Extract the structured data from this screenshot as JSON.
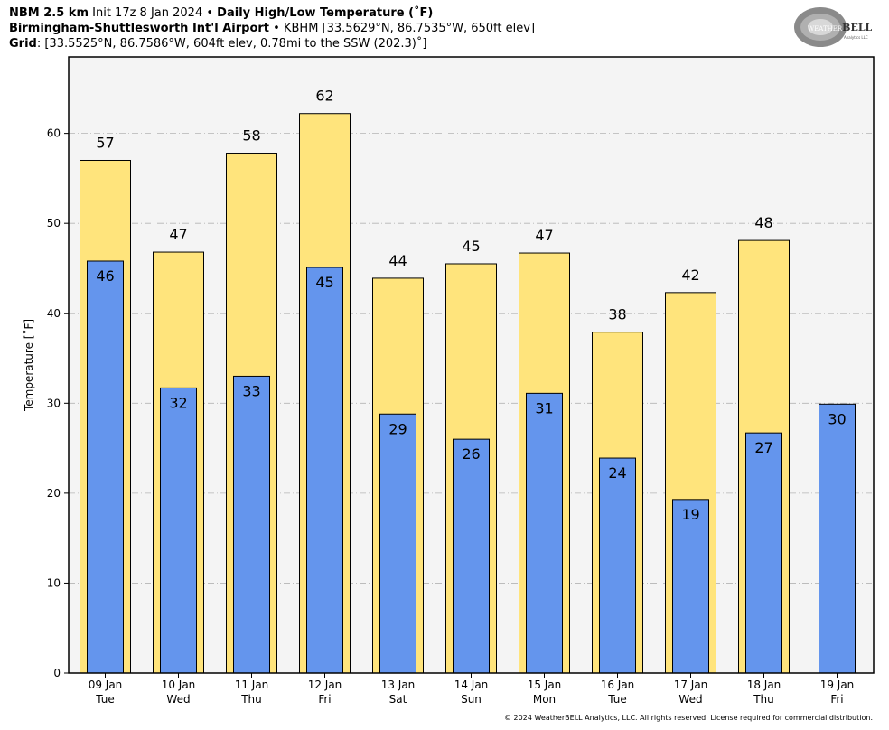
{
  "header": {
    "line1_model": "NBM 2.5 km",
    "line1_init": "Init 17z 8 Jan 2024",
    "line1_sep": "•",
    "line1_title": "Daily High/Low Temperature (˚F)",
    "line2_station": "Birmingham-Shuttlesworth Int'l Airport",
    "line2_sep": "•",
    "line2_detail": "KBHM [33.5629°N, 86.7535°W, 650ft elev]",
    "line3_label": "Grid",
    "line3_detail": ": [33.5525°N, 86.7586°W, 604ft elev, 0.78mi to the SSW (202.3)˚]"
  },
  "logo": {
    "text_weather": "WEATHER",
    "text_bell": "BELL",
    "sub": "Analytics LLC"
  },
  "footer": {
    "copyright": "© 2024 WeatherBELL Analytics, LLC. All rights reserved. License required for commercial distribution."
  },
  "chart_data": {
    "type": "bar",
    "title": "Daily High/Low Temperature (˚F)",
    "ylabel": "Temperature [˚F]",
    "xlabel": "",
    "ylim": [
      0,
      68.5
    ],
    "yticks": [
      0,
      10,
      20,
      30,
      40,
      50,
      60
    ],
    "grid": true,
    "categories": [
      {
        "date": "09 Jan",
        "day": "Tue"
      },
      {
        "date": "10 Jan",
        "day": "Wed"
      },
      {
        "date": "11 Jan",
        "day": "Thu"
      },
      {
        "date": "12 Jan",
        "day": "Fri"
      },
      {
        "date": "13 Jan",
        "day": "Sat"
      },
      {
        "date": "14 Jan",
        "day": "Sun"
      },
      {
        "date": "15 Jan",
        "day": "Mon"
      },
      {
        "date": "16 Jan",
        "day": "Tue"
      },
      {
        "date": "17 Jan",
        "day": "Wed"
      },
      {
        "date": "18 Jan",
        "day": "Thu"
      },
      {
        "date": "19 Jan",
        "day": "Fri"
      }
    ],
    "series": [
      {
        "values": [
          57,
          46.8,
          57.8,
          62.2,
          43.9,
          45.5,
          46.7,
          37.9,
          42.3,
          48.1,
          null
        ],
        "labels": [
          "57",
          "47",
          "58",
          "62",
          "44",
          "45",
          "47",
          "38",
          "42",
          "48",
          ""
        ],
        "color": "#ffe47c"
      },
      {
        "values": [
          45.8,
          31.7,
          33,
          45.1,
          28.8,
          26,
          31.1,
          23.9,
          19.3,
          26.7,
          29.9
        ],
        "labels": [
          "46",
          "32",
          "33",
          "45",
          "29",
          "26",
          "31",
          "24",
          "19",
          "27",
          "30"
        ],
        "color": "#6495ed"
      }
    ],
    "colors": {
      "plot_bg": "#f4f4f4",
      "grid": "#b4b4b4"
    }
  }
}
